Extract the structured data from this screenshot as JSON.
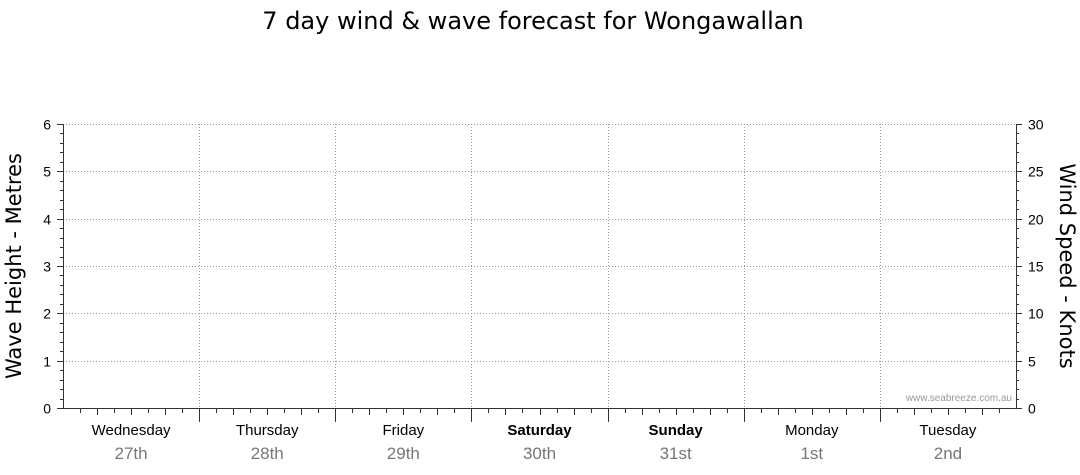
{
  "chart_data": {
    "type": "line",
    "title": "7 day wind & wave forecast for Wongawallan",
    "ylabel_left": "Wave Height - Metres",
    "ylabel_right": "Wind Speed - Knots",
    "y_left": {
      "range": [
        0,
        6
      ],
      "ticks": [
        "0",
        "1",
        "2",
        "3",
        "4",
        "5",
        "6"
      ]
    },
    "y_right": {
      "range": [
        0,
        30
      ],
      "ticks": [
        "0",
        "5",
        "10",
        "15",
        "20",
        "25",
        "30"
      ]
    },
    "grid": true,
    "days": [
      {
        "day": "Wednesday",
        "date": "27th",
        "bold": false
      },
      {
        "day": "Thursday",
        "date": "28th",
        "bold": false
      },
      {
        "day": "Friday",
        "date": "29th",
        "bold": false
      },
      {
        "day": "Saturday",
        "date": "30th",
        "bold": true
      },
      {
        "day": "Sunday",
        "date": "31st",
        "bold": true
      },
      {
        "day": "Monday",
        "date": "1st",
        "bold": false
      },
      {
        "day": "Tuesday",
        "date": "2nd",
        "bold": false
      }
    ],
    "series": [],
    "watermark": "www.seabreeze.com.au"
  }
}
